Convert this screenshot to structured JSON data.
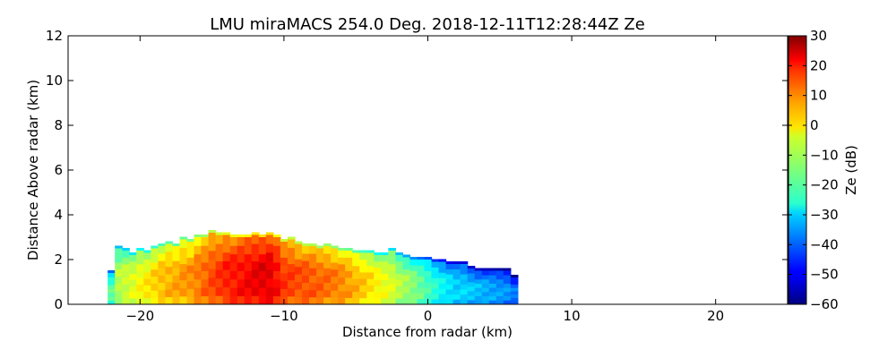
{
  "chart_data": {
    "type": "heatmap",
    "title": "LMU miraMACS 254.0 Deg. 2018-12-11T12:28:44Z  Ze",
    "xlabel": "Distance from radar (km)",
    "ylabel": "Distance Above radar  (km)",
    "xlim": [
      -25,
      25
    ],
    "ylim": [
      0,
      12
    ],
    "xticks": [
      -20,
      -10,
      0,
      10,
      20
    ],
    "xtick_labels": [
      "−20",
      "−10",
      "0",
      "10",
      "20"
    ],
    "yticks": [
      0,
      2,
      4,
      6,
      8,
      10,
      12
    ],
    "ytick_labels": [
      "0",
      "2",
      "4",
      "6",
      "8",
      "10",
      "12"
    ],
    "grid": false,
    "colorbar": {
      "label": "Ze (dB)",
      "colormap": "jet",
      "range": [
        -60,
        30
      ],
      "ticks": [
        30,
        20,
        10,
        0,
        -10,
        -20,
        -30,
        -40,
        -50,
        -60
      ],
      "tick_labels": [
        "30",
        "20",
        "10",
        "0",
        "−10",
        "−20",
        "−30",
        "−40",
        "−50",
        "−60"
      ]
    },
    "echo_columns": [
      {
        "x": -22,
        "top": 1.4,
        "ze": -18
      },
      {
        "x": -21.5,
        "top": 2.5,
        "ze": -10
      },
      {
        "x": -21,
        "top": 2.4,
        "ze": -8
      },
      {
        "x": -20.5,
        "top": 2.2,
        "ze": -6
      },
      {
        "x": -20,
        "top": 2.4,
        "ze": -4
      },
      {
        "x": -19.5,
        "top": 2.3,
        "ze": -2
      },
      {
        "x": -19,
        "top": 2.5,
        "ze": 0
      },
      {
        "x": -18.5,
        "top": 2.6,
        "ze": 2
      },
      {
        "x": -18,
        "top": 2.7,
        "ze": 3
      },
      {
        "x": -17.5,
        "top": 2.6,
        "ze": 4
      },
      {
        "x": -17,
        "top": 2.9,
        "ze": 5
      },
      {
        "x": -16.5,
        "top": 2.8,
        "ze": 6
      },
      {
        "x": -16,
        "top": 3.0,
        "ze": 8
      },
      {
        "x": -15.5,
        "top": 3.0,
        "ze": 10
      },
      {
        "x": -15,
        "top": 3.2,
        "ze": 12
      },
      {
        "x": -14.5,
        "top": 3.1,
        "ze": 14
      },
      {
        "x": -14,
        "top": 3.1,
        "ze": 16
      },
      {
        "x": -13.5,
        "top": 3.0,
        "ze": 17
      },
      {
        "x": -13,
        "top": 3.0,
        "ze": 18
      },
      {
        "x": -12.5,
        "top": 3.0,
        "ze": 19
      },
      {
        "x": -12,
        "top": 3.1,
        "ze": 20
      },
      {
        "x": -11.5,
        "top": 3.0,
        "ze": 21
      },
      {
        "x": -11,
        "top": 3.1,
        "ze": 21
      },
      {
        "x": -10.5,
        "top": 3.0,
        "ze": 18
      },
      {
        "x": -10,
        "top": 2.8,
        "ze": 14
      },
      {
        "x": -9.5,
        "top": 2.9,
        "ze": 13
      },
      {
        "x": -9,
        "top": 2.7,
        "ze": 12
      },
      {
        "x": -8.5,
        "top": 2.6,
        "ze": 12
      },
      {
        "x": -8,
        "top": 2.6,
        "ze": 11
      },
      {
        "x": -7.5,
        "top": 2.5,
        "ze": 10
      },
      {
        "x": -7,
        "top": 2.6,
        "ze": 9
      },
      {
        "x": -6.5,
        "top": 2.5,
        "ze": 8
      },
      {
        "x": -6,
        "top": 2.4,
        "ze": 7
      },
      {
        "x": -5.5,
        "top": 2.4,
        "ze": 5
      },
      {
        "x": -5,
        "top": 2.3,
        "ze": 3
      },
      {
        "x": -4.5,
        "top": 2.3,
        "ze": 1
      },
      {
        "x": -4,
        "top": 2.3,
        "ze": -1
      },
      {
        "x": -3.5,
        "top": 2.2,
        "ze": -3
      },
      {
        "x": -3,
        "top": 2.2,
        "ze": -5
      },
      {
        "x": -2.5,
        "top": 2.4,
        "ze": -7
      },
      {
        "x": -2,
        "top": 2.2,
        "ze": -10
      },
      {
        "x": -1.5,
        "top": 2.1,
        "ze": -12
      },
      {
        "x": -1,
        "top": 2.0,
        "ze": -14
      },
      {
        "x": -0.5,
        "top": 2.0,
        "ze": -17
      },
      {
        "x": 0,
        "top": 2.0,
        "ze": -20
      },
      {
        "x": 0.5,
        "top": 1.9,
        "ze": -23
      },
      {
        "x": 1,
        "top": 1.9,
        "ze": -26
      },
      {
        "x": 1.5,
        "top": 1.8,
        "ze": -28
      },
      {
        "x": 2,
        "top": 1.8,
        "ze": -30
      },
      {
        "x": 2.5,
        "top": 1.8,
        "ze": -30
      },
      {
        "x": 3,
        "top": 1.6,
        "ze": -31
      },
      {
        "x": 3.5,
        "top": 1.5,
        "ze": -32
      },
      {
        "x": 4,
        "top": 1.5,
        "ze": -33
      },
      {
        "x": 4.5,
        "top": 1.5,
        "ze": -34
      },
      {
        "x": 5,
        "top": 1.5,
        "ze": -35
      },
      {
        "x": 5.5,
        "top": 1.5,
        "ze": -36
      },
      {
        "x": 6,
        "top": 1.2,
        "ze": -38
      }
    ]
  }
}
